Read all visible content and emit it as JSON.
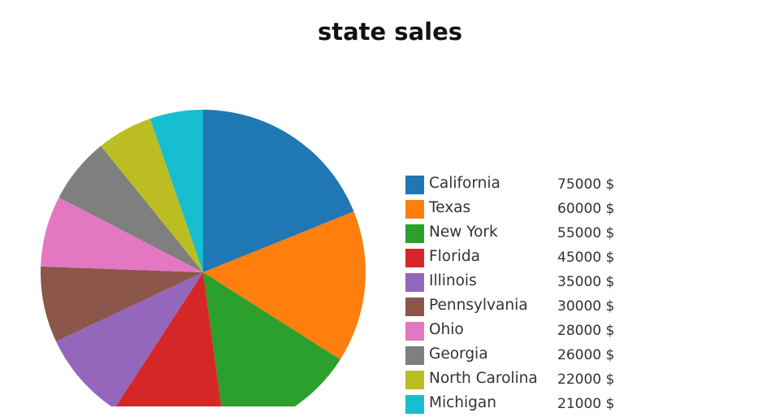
{
  "chart_data": {
    "type": "pie",
    "title": "state sales",
    "unit_suffix": "$",
    "categories": [
      "California",
      "Texas",
      "New York",
      "Florida",
      "Illinois",
      "Pennsylvania",
      "Ohio",
      "Georgia",
      "North Carolina",
      "Michigan"
    ],
    "values": [
      75000,
      60000,
      55000,
      45000,
      35000,
      30000,
      28000,
      26000,
      22000,
      21000
    ],
    "value_labels": [
      "75000 $",
      "60000 $",
      "55000 $",
      "45000 $",
      "35000 $",
      "30000 $",
      "28000 $",
      "26000 $",
      "22000 $",
      "21000 $"
    ],
    "colors": [
      "#1f77b4",
      "#ff7f0e",
      "#2ca02c",
      "#d62728",
      "#9467bd",
      "#8c564b",
      "#e377c2",
      "#7f7f7f",
      "#bcbd22",
      "#17becf"
    ],
    "start_angle_deg": 0,
    "direction": "clockwise",
    "legend_placement": "right"
  }
}
